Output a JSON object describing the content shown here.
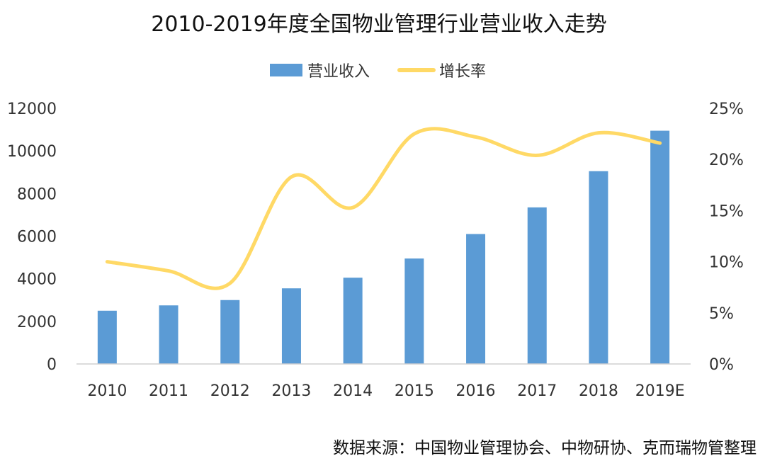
{
  "chart_data": {
    "type": "bar+line",
    "title": "2010-2019年度全国物业管理行业营业收入走势",
    "categories": [
      "2010",
      "2011",
      "2012",
      "2013",
      "2014",
      "2015",
      "2016",
      "2017",
      "2018",
      "2019E"
    ],
    "series": [
      {
        "name": "营业收入",
        "type": "bar",
        "axis": "left",
        "color": "#5b9bd5",
        "values": [
          2500,
          2750,
          3000,
          3550,
          4050,
          4950,
          6100,
          7350,
          9050,
          10950
        ]
      },
      {
        "name": "增长率",
        "type": "line",
        "axis": "right",
        "color": "#ffd966",
        "values": [
          10.0,
          9.1,
          7.9,
          18.3,
          15.3,
          22.5,
          22.2,
          20.4,
          22.6,
          21.6
        ]
      }
    ],
    "left_axis": {
      "min": 0,
      "max": 12000,
      "ticks": [
        "0",
        "2000",
        "4000",
        "6000",
        "8000",
        "10000",
        "12000"
      ]
    },
    "right_axis": {
      "min": 0,
      "max": 25,
      "ticks": [
        "0%",
        "5%",
        "10%",
        "15%",
        "20%",
        "25%"
      ]
    },
    "legend_position": "top-center",
    "grid": false
  },
  "source_note": "数据来源：中国物业管理协会、中物研协、克而瑞物管整理"
}
